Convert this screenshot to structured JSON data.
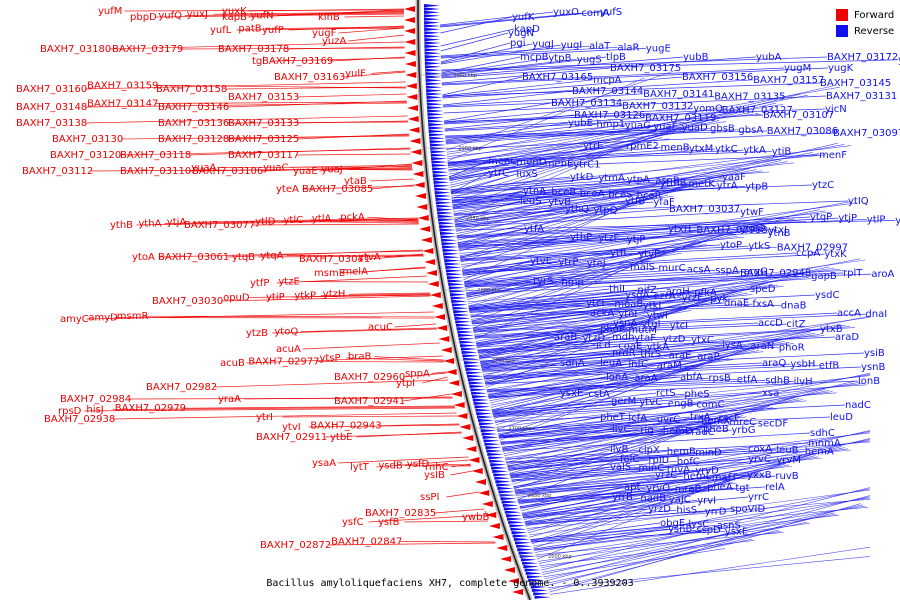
{
  "title": "Bacillus amyloliquefaciens XH7, complete genome. - 0..3939203",
  "legend": {
    "forward": {
      "label": "Forward",
      "color": "#ee0000"
    },
    "reverse": {
      "label": "Reverse",
      "color": "#1010ee"
    }
  },
  "position_ticks": [
    "2950 kbp",
    "2900 kbp",
    "2850 kbp",
    "2800 kbp",
    "2750 kbp",
    "2700 kbp",
    "2650 kbp",
    "2600 kbp"
  ],
  "forward_genes": [
    "yufM",
    "yuxK",
    "pbpD",
    "yufQ",
    "yuxJ",
    "kapB",
    "yufN",
    "kinB",
    "yufL",
    "patB",
    "yufP",
    "yugF",
    "yuzA",
    "BAXH7_03180",
    "BAXH7_03179",
    "BAXH7_03178",
    "tgl",
    "BAXH7_03169",
    "BAXH7_03163",
    "yulF",
    "BAXH7_03160",
    "BAXH7_03159",
    "BAXH7_03158",
    "BAXH7_03153",
    "BAXH7_03148",
    "BAXH7_03147",
    "BAXH7_03146",
    "BAXH7_03138",
    "BAXH7_03136",
    "BAXH7_03133",
    "BAXH7_03130",
    "BAXH7_03128",
    "BAXH7_03125",
    "BAXH7_03120",
    "BAXH7_03118",
    "BAXH7_03117",
    "BAXH7_03112",
    "BAXH7_03110",
    "yuaA",
    "BAXH7_03106",
    "yuaC",
    "yuaE",
    "yuaJ",
    "ytaB",
    "yteA",
    "BAXH7_03085",
    "ythB",
    "ythA",
    "ytjA",
    "BAXH7_03077",
    "ytlD",
    "ytlC",
    "ytlA",
    "pckA",
    "ytoA",
    "BAXH7_03061",
    "ytqB",
    "ytqA",
    "ytvA",
    "BAXH7_03041",
    "msmE",
    "melA",
    "ytfP",
    "ytzE",
    "ytiP",
    "ytkP",
    "ytzH",
    "BAXH7_03030",
    "opuD",
    "amyC",
    "amyD",
    "msmR",
    "acuC",
    "ytzB",
    "ytoQ",
    "acuA",
    "acuB",
    "BAXH7_02977",
    "ytsP",
    "braB",
    "BAXH7_02960",
    "sppA",
    "ytpI",
    "BAXH7_02982",
    "BAXH7_02984",
    "yraA",
    "rpsD",
    "hisJ",
    "BAXH7_02979",
    "BAXH7_02938",
    "BAXH7_02941",
    "ytrI",
    "ytvI",
    "BAXH7_02943",
    "BAXH7_02911",
    "ytbE",
    "ysaA",
    "lytT",
    "ysdB",
    "ysfD",
    "rnhC",
    "ysIB",
    "ssPI",
    "ywbB",
    "ysfC",
    "ysfB",
    "BAXH7_02872",
    "BAXH7_02847",
    "BAXH7_02835"
  ],
  "reverse_genes": [
    "yuxO",
    "comA",
    "yufS",
    "yufK",
    "kapD",
    "yugN",
    "pgi",
    "yugJ",
    "yugI",
    "alaT",
    "alaR",
    "yugE",
    "mcpB",
    "ytpB",
    "yugS",
    "tlpB",
    "yubB",
    "yubA",
    "BAXH7_03172",
    "yugT",
    "BAXH7_03175",
    "yugM",
    "yugK",
    "BAXH7_03165",
    "mcpA",
    "BAXH7_03156",
    "BAXH7_03157",
    "BAXH7_03145",
    "BAXH7_03144",
    "BAXH7_03141",
    "BAXH7_03135",
    "BAXH7_03131",
    "BAXH7_03134",
    "BAXH7_03132",
    "yomQ",
    "BAXH7_03127",
    "yjcN",
    "BAXH7_03126",
    "BAXH7_03119",
    "BAXH7_03107",
    "yubE",
    "hmp1",
    "yuaG",
    "yuaF",
    "yuaD",
    "gbsB",
    "gbsA",
    "BAXH7_03086",
    "BAXH7_03097",
    "ytrE",
    "rpmE2",
    "menB",
    "ytxM",
    "ytkC",
    "ytkA",
    "ytiB",
    "menF",
    "menC",
    "menD",
    "menE",
    "ytrC1",
    "ytrC",
    "luxS",
    "ytkD",
    "ytmA",
    "ytpA",
    "asnB",
    "ytmB",
    "metK",
    "ytrA",
    "ytpB",
    "yaaF",
    "ytzC",
    "ytnA",
    "bceB",
    "bceA",
    "bceS",
    "bceR",
    "leuS",
    "ytvB",
    "ytfB",
    "yfaF",
    "ytIQ",
    "ythQ",
    "ytpQ",
    "BAXH7_03037",
    "ytwF",
    "ytgP",
    "ytjP",
    "ytlP",
    "ytxG",
    "ytfA",
    "ytxH",
    "BAXH7_02988",
    "ytnB",
    "ytmP",
    "ytxJ",
    "ythP",
    "ytzF",
    "ytjP",
    "ytoP",
    "ytkS",
    "BAXH7_02997",
    "ytfI",
    "ytvP",
    "ccpA",
    "ytxK",
    "ytvE",
    "ytrP",
    "yteJ",
    "malS",
    "murC",
    "acsA",
    "sspA",
    "argG",
    "BAXH7_02948",
    "gapB",
    "rplT",
    "aroA",
    "tyrS",
    "hmp",
    "thiI",
    "nifZ",
    "argH",
    "pfkA",
    "speD",
    "ysdA",
    "ezrA",
    "yrzF",
    "pyk",
    "ysdC",
    "ytcI",
    "moaB",
    "ytkL",
    "dnaE",
    "fxsA",
    "dnaB",
    "ackA",
    "ytoI",
    "ytwI",
    "accA",
    "dnaI",
    "ysnA",
    "ytgI",
    "ytcI",
    "accD",
    "citZ",
    "phoP",
    "mutM",
    "ytxB",
    "araB",
    "ytzD",
    "mdh",
    "ytaF",
    "ytzD",
    "ytxC",
    "araD",
    "icd",
    "coaE",
    "ytkA",
    "lysA",
    "araN",
    "phoR",
    "nrdR",
    "thrS",
    "araE",
    "araP",
    "ysiB",
    "sdhA",
    "leuA",
    "infC",
    "araM",
    "araQ",
    "ysbH",
    "etfB",
    "ysnB",
    "lonA",
    "araA",
    "abfA",
    "rpsB",
    "etfA",
    "sdhB",
    "ilvH",
    "lonB",
    "ysxE",
    "cstA",
    "rctS",
    "pheS",
    "xsa",
    "gerM",
    "ytvC",
    "engB",
    "comC",
    "nadC",
    "pheT",
    "lcfA",
    "uvrC",
    "trxA",
    "racE",
    "leuD",
    "hemX",
    "mreC",
    "secDF",
    "sdhC",
    "ilvC",
    "rig",
    "hemD",
    "radC",
    "pheB",
    "yrbG",
    "mnmA",
    "ilvB",
    "clpX",
    "hemB",
    "minD",
    "coxA",
    "leuB",
    "hemA",
    "folC",
    "rpIU",
    "bofC",
    "yrvC",
    "yrvM",
    "valS",
    "minC",
    "ruvA",
    "yrvD",
    "yrzC",
    "hemL",
    "mafT",
    "yxxB",
    "ruvB",
    "apt",
    "yrvO",
    "mreB",
    "pheA",
    "tgt",
    "relA",
    "yrrB",
    "nadB",
    "yaJC",
    "yrvI",
    "yrrC",
    "yrzD",
    "hisS",
    "yrrD",
    "spoVID",
    "obgE",
    "lysC",
    "asnS",
    "ysnB",
    "sspD",
    "ysxE",
    "aspS",
    "yrzK"
  ]
}
